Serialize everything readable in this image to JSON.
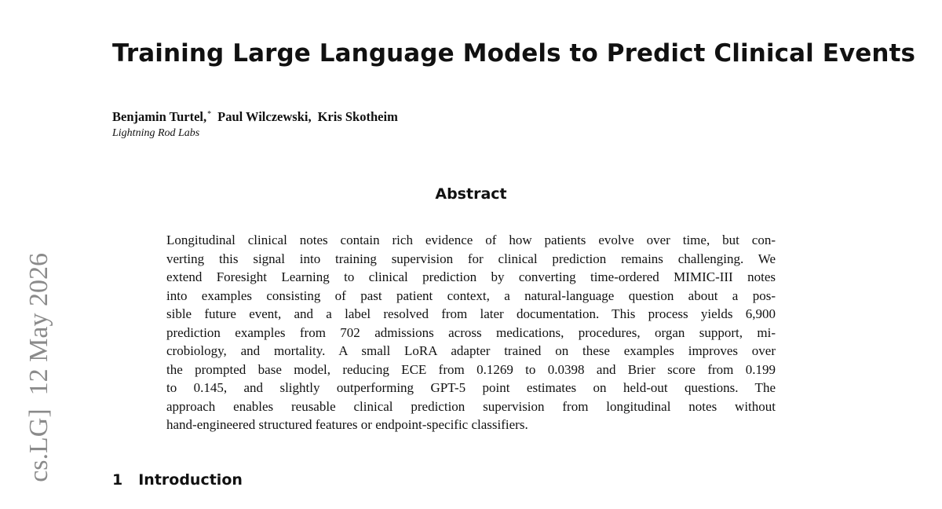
{
  "sidebar_stamp": "cs.LG]  12 May 2026",
  "header": {
    "title": "Training Large Language Models to Predict Clinical Events",
    "authors": [
      {
        "name": "Benjamin Turtel,",
        "mark": "*"
      },
      {
        "name": "Paul Wilczewski,"
      },
      {
        "name": "Kris Skotheim"
      }
    ],
    "affiliation": "Lightning Rod Labs"
  },
  "abstract": {
    "heading": "Abstract",
    "lines": [
      "Longitudinal clinical notes contain rich evidence of how patients evolve over time, but con-",
      "verting this signal into training supervision for clinical prediction remains challenging. We",
      "extend Foresight Learning to clinical prediction by converting time-ordered MIMIC-III notes",
      "into examples consisting of past patient context, a natural-language question about a pos-",
      "sible future event, and a label resolved from later documentation. This process yields 6,900",
      "prediction examples from 702 admissions across medications, procedures, organ support, mi-",
      "crobiology, and mortality. A small LoRA adapter trained on these examples improves over",
      "the prompted base model, reducing ECE from 0.1269 to 0.0398 and Brier score from 0.199",
      "to 0.145, and slightly outperforming GPT-5 point estimates on held-out questions. The",
      "approach enables reusable clinical prediction supervision from longitudinal notes without",
      "hand-engineered structured features or endpoint-specific classifiers."
    ]
  },
  "section": {
    "number": "1",
    "title": "Introduction"
  }
}
